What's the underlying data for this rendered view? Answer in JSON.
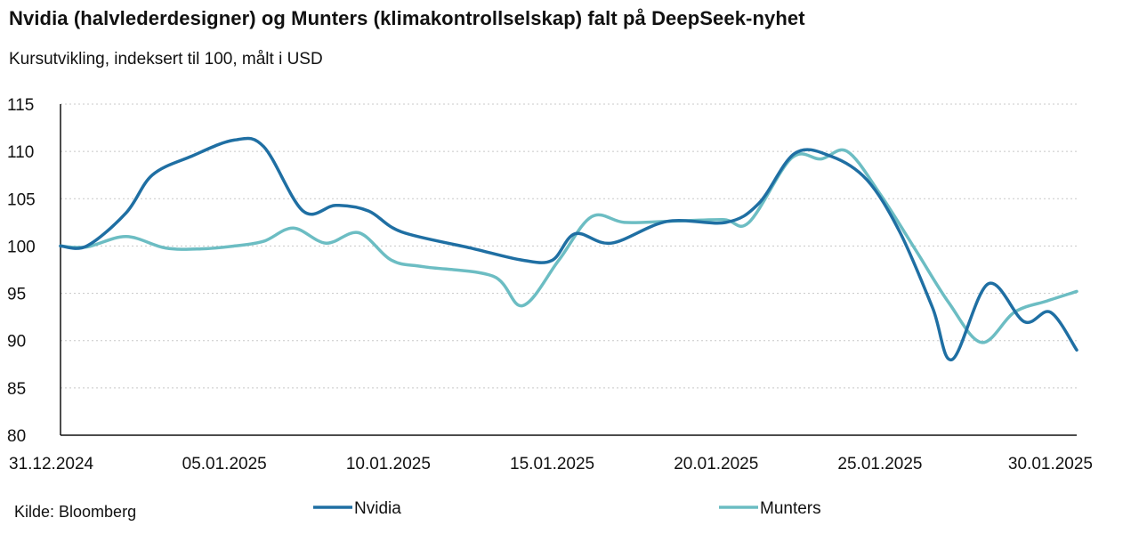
{
  "chart_data": {
    "type": "line",
    "title": "Nvidia (halvlederdesigner) og Munters (klimakontrollselskap) falt på DeepSeek-nyhet",
    "subtitle": "Kursutvikling, indeksert til 100, målt i USD",
    "source": "Kilde: Bloomberg",
    "xlabel": "",
    "ylabel": "",
    "ylim": [
      80,
      115
    ],
    "y_ticks": [
      "115",
      "110",
      "105",
      "100",
      "95",
      "90",
      "85",
      "80"
    ],
    "x_ticks": [
      "31.12.2024",
      "05.01.2025",
      "10.01.2025",
      "15.01.2025",
      "20.01.2025",
      "25.01.2025",
      "30.01.2025"
    ],
    "x_range_days": [
      0,
      31
    ],
    "grid": true,
    "legend_position": "bottom",
    "series": [
      {
        "name": "Nvidia",
        "color": "#1f6fa3",
        "x": [
          0,
          0.8,
          2,
          2.8,
          4,
          5.3,
          6.2,
          7.4,
          8.4,
          9.4,
          10.4,
          12.5,
          14.1,
          15,
          15.7,
          16.8,
          18.5,
          20.3,
          21.3,
          22.4,
          23.5,
          24.6,
          25.6,
          26.6,
          27.2,
          28.3,
          29.4,
          30.2,
          31
        ],
        "values": [
          100,
          100,
          103.5,
          107.5,
          109.5,
          111.2,
          110.5,
          103.7,
          104.3,
          103.7,
          101.5,
          99.8,
          98.5,
          98.5,
          101.3,
          100.3,
          102.6,
          102.5,
          104.5,
          109.8,
          109.5,
          107,
          101.5,
          93.5,
          88,
          96,
          92,
          93,
          89
        ]
      },
      {
        "name": "Munters",
        "color": "#6cbdc3",
        "x": [
          0,
          0.8,
          2,
          3.2,
          4.3,
          5.3,
          6.2,
          7.1,
          8.1,
          9.1,
          10.1,
          11.1,
          13.2,
          14.1,
          15.2,
          16.2,
          17.2,
          18.5,
          20.2,
          21,
          22.3,
          23.2,
          24,
          25,
          26.1,
          27.1,
          28.1,
          29.1,
          30.1,
          31
        ],
        "values": [
          100,
          99.9,
          101,
          99.8,
          99.7,
          100,
          100.5,
          101.9,
          100.3,
          101.4,
          98.5,
          97.8,
          96.8,
          93.7,
          98.5,
          103.1,
          102.5,
          102.6,
          102.8,
          102.5,
          109.3,
          109.2,
          110,
          105.5,
          99.5,
          94,
          89.8,
          93,
          94.2,
          95.2
        ]
      }
    ]
  }
}
